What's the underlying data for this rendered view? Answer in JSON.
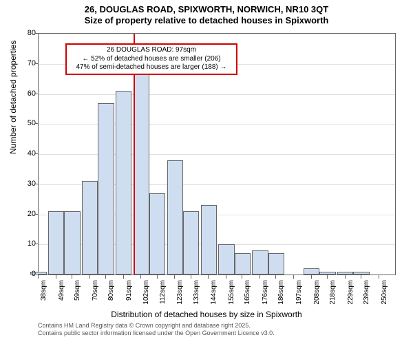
{
  "title_line1": "26, DOUGLAS ROAD, SPIXWORTH, NORWICH, NR10 3QT",
  "title_line2": "Size of property relative to detached houses in Spixworth",
  "y_axis_label": "Number of detached properties",
  "x_axis_label": "Distribution of detached houses by size in Spixworth",
  "footer_line1": "Contains HM Land Registry data © Crown copyright and database right 2025.",
  "footer_line2": "Contains public sector information licensed under the Open Government Licence v3.0.",
  "chart": {
    "type": "histogram",
    "background_color": "#ffffff",
    "grid_color": "#e0e0e0",
    "border_color": "#666666",
    "bar_fill": "#cfddf0",
    "bar_border": "#666666",
    "vline_color": "#d00000",
    "vline_xvalue": 97,
    "xlim": [
      38,
      260
    ],
    "ylim": [
      0,
      80
    ],
    "ytick_step": 10,
    "bar_width_sqm": 10,
    "bars": [
      {
        "x": 38,
        "count": 1
      },
      {
        "x": 49,
        "count": 21
      },
      {
        "x": 59,
        "count": 21
      },
      {
        "x": 70,
        "count": 31
      },
      {
        "x": 80,
        "count": 57
      },
      {
        "x": 91,
        "count": 61
      },
      {
        "x": 102,
        "count": 67
      },
      {
        "x": 112,
        "count": 27
      },
      {
        "x": 123,
        "count": 38
      },
      {
        "x": 133,
        "count": 21
      },
      {
        "x": 144,
        "count": 23
      },
      {
        "x": 155,
        "count": 10
      },
      {
        "x": 165,
        "count": 7
      },
      {
        "x": 176,
        "count": 8
      },
      {
        "x": 186,
        "count": 7
      },
      {
        "x": 197,
        "count": 0
      },
      {
        "x": 208,
        "count": 2
      },
      {
        "x": 218,
        "count": 1
      },
      {
        "x": 229,
        "count": 1
      },
      {
        "x": 239,
        "count": 1
      },
      {
        "x": 250,
        "count": 0
      }
    ],
    "x_tick_labels": [
      "38sqm",
      "49sqm",
      "59sqm",
      "70sqm",
      "80sqm",
      "91sqm",
      "102sqm",
      "112sqm",
      "123sqm",
      "133sqm",
      "144sqm",
      "155sqm",
      "165sqm",
      "176sqm",
      "186sqm",
      "197sqm",
      "208sqm",
      "218sqm",
      "229sqm",
      "239sqm",
      "250sqm"
    ]
  },
  "callout": {
    "line1": "26 DOUGLAS ROAD: 97sqm",
    "line2": "← 52% of detached houses are smaller (206)",
    "line3": "47% of semi-detached houses are larger (188) →",
    "border_color": "#d00000",
    "background_color": "#ffffff",
    "fontsize": 10
  }
}
